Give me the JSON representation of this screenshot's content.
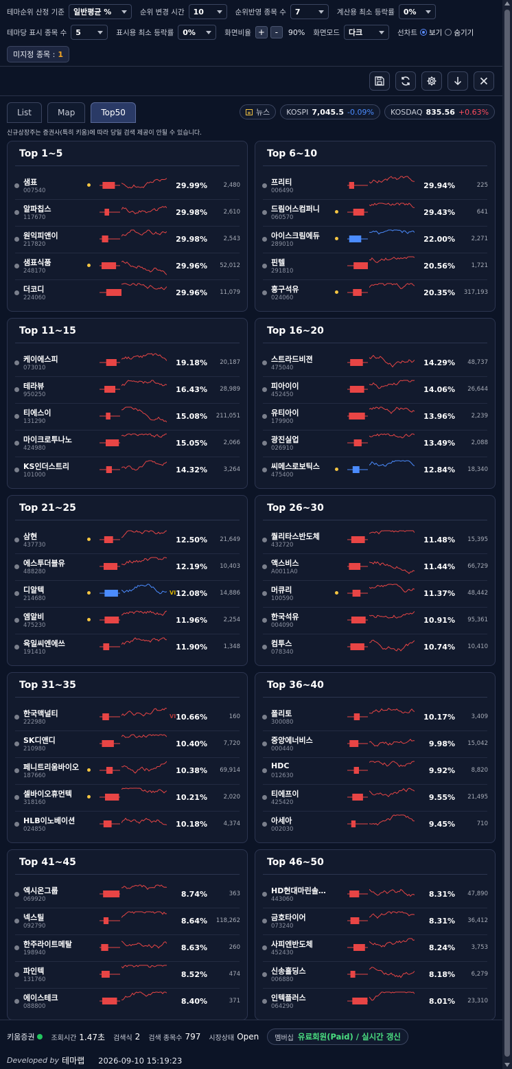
{
  "settings": {
    "rank_basis_label": "테마순위 산정 기준",
    "rank_basis_value": "일반평균 %",
    "rank_change_time_label": "순위 변경 시간",
    "rank_change_time_value": "10",
    "rank_stock_count_label": "순위반영 종목 수",
    "rank_stock_count_value": "7",
    "calc_min_rise_label": "계산용 최소 등락률",
    "calc_min_rise_value": "0%",
    "theme_display_count_label": "테마당 표시 종목 수",
    "theme_display_count_value": "5",
    "display_min_rise_label": "표시용 최소 등락률",
    "display_min_rise_value": "0%",
    "zoom_label": "화면비율",
    "zoom_plus": "+",
    "zoom_minus": "-",
    "zoom_value": "90%",
    "screen_mode_label": "화면모드",
    "screen_mode_value": "다크",
    "line_chart_label": "선차트",
    "line_chart_show": "보기",
    "line_chart_hide": "숨기기",
    "unassigned_label": "미지정 종목 :",
    "unassigned_count": "1"
  },
  "toolbar": {
    "icons": [
      "save-icon",
      "refresh-icon",
      "gear-icon",
      "download-icon",
      "close-icon"
    ]
  },
  "tabs": [
    "List",
    "Map",
    "Top50"
  ],
  "market": {
    "news_label": "뉴스",
    "kospi_label": "KOSPI",
    "kospi_value": "7,045.5",
    "kospi_change": "-0.09%",
    "kosdaq_label": "KOSDAQ",
    "kosdaq_value": "835.56",
    "kosdaq_change": "+0.63%"
  },
  "notice": "신규상장주는 증권사(특히 키움)에 따라 당일 검색 제공이 안될 수 있습니다.",
  "groups": [
    {
      "title": "Top 1~5",
      "rows": [
        {
          "name": "샘표",
          "code": "007540",
          "rate": "29.99%",
          "volume": "2,480",
          "dot": true
        },
        {
          "name": "알파칩스",
          "code": "117670",
          "rate": "29.98%",
          "volume": "2,610",
          "dot": false
        },
        {
          "name": "원익피앤이",
          "code": "217820",
          "rate": "29.98%",
          "volume": "2,543",
          "dot": false
        },
        {
          "name": "샘표식품",
          "code": "248170",
          "rate": "29.96%",
          "volume": "52,012",
          "dot": true
        },
        {
          "name": "더코디",
          "code": "224060",
          "rate": "29.96%",
          "volume": "11,079",
          "dot": false
        }
      ]
    },
    {
      "title": "Top 6~10",
      "rows": [
        {
          "name": "프리티",
          "code": "006490",
          "rate": "29.94%",
          "volume": "225",
          "dot": false
        },
        {
          "name": "드림어스컴퍼니",
          "code": "060570",
          "rate": "29.43%",
          "volume": "641",
          "dot": true
        },
        {
          "name": "아이스크림에듀",
          "code": "289010",
          "rate": "22.00%",
          "volume": "2,271",
          "dot": true,
          "blue": true
        },
        {
          "name": "핀텔",
          "code": "291810",
          "rate": "20.56%",
          "volume": "1,721",
          "dot": false
        },
        {
          "name": "흥구석유",
          "code": "024060",
          "rate": "20.35%",
          "volume": "317,193",
          "dot": true
        }
      ]
    },
    {
      "title": "Top 11~15",
      "rows": [
        {
          "name": "케이에스피",
          "code": "073010",
          "rate": "19.18%",
          "volume": "20,187",
          "dot": false
        },
        {
          "name": "테라뷰",
          "code": "950250",
          "rate": "16.43%",
          "volume": "28,989",
          "dot": false
        },
        {
          "name": "티에스이",
          "code": "131290",
          "rate": "15.08%",
          "volume": "211,051",
          "dot": false
        },
        {
          "name": "마이크로투나노",
          "code": "424980",
          "rate": "15.05%",
          "volume": "2,066",
          "dot": false
        },
        {
          "name": "KS인더스트리",
          "code": "101000",
          "rate": "14.32%",
          "volume": "3,264",
          "dot": false
        }
      ]
    },
    {
      "title": "Top 16~20",
      "rows": [
        {
          "name": "스트라드비젼",
          "code": "475040",
          "rate": "14.29%",
          "volume": "48,737",
          "dot": false
        },
        {
          "name": "피아이이",
          "code": "452450",
          "rate": "14.06%",
          "volume": "26,644",
          "dot": false
        },
        {
          "name": "유티아이",
          "code": "179900",
          "rate": "13.96%",
          "volume": "2,239",
          "dot": false
        },
        {
          "name": "광진실업",
          "code": "026910",
          "rate": "13.49%",
          "volume": "2,088",
          "dot": false
        },
        {
          "name": "씨메스로보틱스",
          "code": "475400",
          "rate": "12.84%",
          "volume": "18,340",
          "dot": true,
          "blue": true
        }
      ]
    },
    {
      "title": "Top 21~25",
      "rows": [
        {
          "name": "삼현",
          "code": "437730",
          "rate": "12.50%",
          "volume": "21,649",
          "dot": true
        },
        {
          "name": "에스투더블유",
          "code": "488280",
          "rate": "12.19%",
          "volume": "10,403",
          "dot": false
        },
        {
          "name": "디알텍",
          "code": "214680",
          "rate": "12.08%",
          "volume": "14,886",
          "dot": true,
          "blue": true,
          "vi": "VI",
          "vi_yellow": true
        },
        {
          "name": "엠알비",
          "code": "475230",
          "rate": "11.96%",
          "volume": "2,254",
          "dot": true
        },
        {
          "name": "육일씨엔에쓰",
          "code": "191410",
          "rate": "11.90%",
          "volume": "1,348",
          "dot": false
        }
      ]
    },
    {
      "title": "Top 26~30",
      "rows": [
        {
          "name": "퀄리타스반도체",
          "code": "432720",
          "rate": "11.48%",
          "volume": "15,395",
          "dot": false
        },
        {
          "name": "액스비스",
          "code": "A0011A0",
          "rate": "11.44%",
          "volume": "66,729",
          "dot": false
        },
        {
          "name": "머큐리",
          "code": "100590",
          "rate": "11.37%",
          "volume": "48,442",
          "dot": true
        },
        {
          "name": "한국석유",
          "code": "004090",
          "rate": "10.91%",
          "volume": "95,361",
          "dot": false
        },
        {
          "name": "컴투스",
          "code": "078340",
          "rate": "10.74%",
          "volume": "10,410",
          "dot": false
        }
      ]
    },
    {
      "title": "Top 31~35",
      "rows": [
        {
          "name": "한국맥널티",
          "code": "222980",
          "rate": "10.66%",
          "volume": "160",
          "dot": false,
          "vi": "VI"
        },
        {
          "name": "SK디앤디",
          "code": "210980",
          "rate": "10.40%",
          "volume": "7,720",
          "dot": false
        },
        {
          "name": "페니트리움바이오",
          "code": "187660",
          "rate": "10.38%",
          "volume": "69,914",
          "dot": true
        },
        {
          "name": "셀바이오휴먼텍",
          "code": "318160",
          "rate": "10.21%",
          "volume": "2,020",
          "dot": true
        },
        {
          "name": "HLB이노베이션",
          "code": "024850",
          "rate": "10.18%",
          "volume": "4,374",
          "dot": false
        }
      ]
    },
    {
      "title": "Top 36~40",
      "rows": [
        {
          "name": "폴리토",
          "code": "300080",
          "rate": "10.17%",
          "volume": "3,409",
          "dot": false
        },
        {
          "name": "중앙에너비스",
          "code": "000440",
          "rate": "9.98%",
          "volume": "15,042",
          "dot": false
        },
        {
          "name": "HDC",
          "code": "012630",
          "rate": "9.92%",
          "volume": "8,820",
          "dot": false
        },
        {
          "name": "티에프이",
          "code": "425420",
          "rate": "9.55%",
          "volume": "21,495",
          "dot": false
        },
        {
          "name": "아세아",
          "code": "002030",
          "rate": "9.45%",
          "volume": "710",
          "dot": false
        }
      ]
    },
    {
      "title": "Top 41~45",
      "rows": [
        {
          "name": "엑시온그룹",
          "code": "069920",
          "rate": "8.74%",
          "volume": "363",
          "dot": false
        },
        {
          "name": "넥스틸",
          "code": "092790",
          "rate": "8.64%",
          "volume": "118,262",
          "dot": false
        },
        {
          "name": "한주라이트메탈",
          "code": "198940",
          "rate": "8.63%",
          "volume": "260",
          "dot": false
        },
        {
          "name": "파인텍",
          "code": "131760",
          "rate": "8.52%",
          "volume": "474",
          "dot": false
        },
        {
          "name": "에이스테크",
          "code": "088800",
          "rate": "8.40%",
          "volume": "371",
          "dot": false
        }
      ]
    },
    {
      "title": "Top 46~50",
      "rows": [
        {
          "name": "HD현대마린솔…",
          "code": "443060",
          "rate": "8.31%",
          "volume": "47,890",
          "dot": false
        },
        {
          "name": "금호타이어",
          "code": "073240",
          "rate": "8.31%",
          "volume": "36,412",
          "dot": false
        },
        {
          "name": "사피엔반도체",
          "code": "452430",
          "rate": "8.24%",
          "volume": "3,753",
          "dot": false
        },
        {
          "name": "신송홀딩스",
          "code": "006880",
          "rate": "8.18%",
          "volume": "6,279",
          "dot": false
        },
        {
          "name": "인텍플러스",
          "code": "064290",
          "rate": "8.01%",
          "volume": "23,310",
          "dot": false
        }
      ]
    }
  ],
  "footer": {
    "broker": "키움증권",
    "query_time_label": "조회시간",
    "query_time_value": "1.47초",
    "search_count_label": "검색식",
    "search_count_value": "2",
    "stock_count_label": "검색 종목수",
    "stock_count_value": "797",
    "market_status_label": "시장상태",
    "market_status_value": "Open",
    "membership_label": "멤버십",
    "membership_value": "유료회원(Paid) / 실시간 갱신",
    "developed_by": "Developed by",
    "developer": "테마랩",
    "timestamp": "2026-09-10 15:19:23"
  },
  "colors": {
    "up": "#e84545",
    "down": "#4b8cff",
    "accent_green": "#4ade80",
    "warning": "#f5c542"
  }
}
